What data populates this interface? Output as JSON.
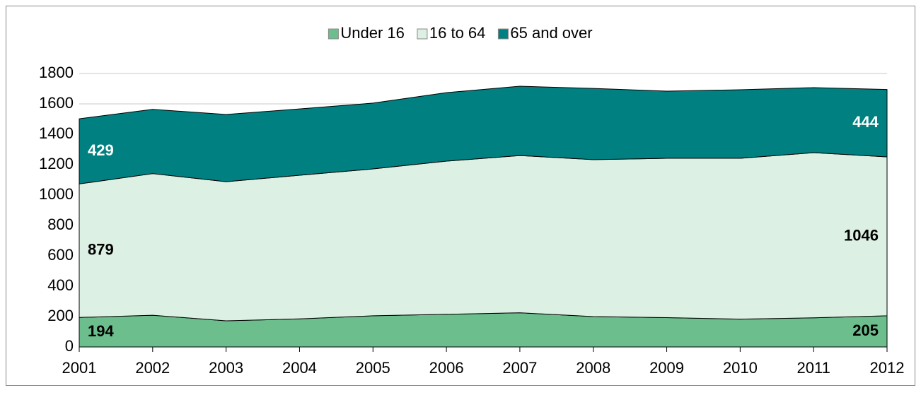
{
  "chart_data": {
    "type": "stacked_area",
    "categories": [
      "2001",
      "2002",
      "2003",
      "2004",
      "2005",
      "2006",
      "2007",
      "2008",
      "2009",
      "2010",
      "2011",
      "2012"
    ],
    "series": [
      {
        "name": "Under 16",
        "color": "#6cbf8c",
        "values": [
          194,
          209,
          172,
          185,
          205,
          215,
          225,
          200,
          193,
          183,
          192,
          205
        ]
      },
      {
        "name": "16 to 64",
        "color": "#ddf0e4",
        "values": [
          879,
          932,
          916,
          945,
          967,
          1008,
          1035,
          1033,
          1049,
          1059,
          1087,
          1046
        ]
      },
      {
        "name": "65 and over",
        "color": "#008080",
        "values": [
          429,
          423,
          442,
          437,
          433,
          451,
          456,
          469,
          442,
          451,
          428,
          444
        ]
      }
    ],
    "ylim": [
      0,
      1800
    ],
    "yticks": [
      0,
      200,
      400,
      600,
      800,
      1000,
      1200,
      1400,
      1600,
      1800
    ],
    "grid": true,
    "legend": "top"
  }
}
